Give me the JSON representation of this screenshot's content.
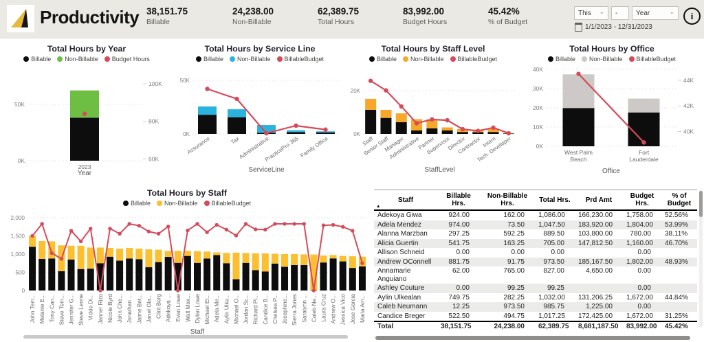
{
  "header": {
    "title": "Productivity",
    "kpis": [
      {
        "value": "38,151.75",
        "label": "Billable"
      },
      {
        "value": "24,238.00",
        "label": "Non-Billable"
      },
      {
        "value": "62,389.75",
        "label": "Total Hours"
      },
      {
        "value": "83,992.00",
        "label": "Budget Hours"
      },
      {
        "value": "45.42%",
        "label": "% of Budget"
      }
    ],
    "slicers": {
      "period": "This",
      "separator": "-",
      "granularity": "Year",
      "date_range": "1/1/2023 - 12/31/2023"
    },
    "info": "i"
  },
  "chart_data": [
    {
      "type": "bar",
      "title": "Total Hours by Year",
      "xlabel": "Year",
      "categories": [
        "2023"
      ],
      "series": [
        {
          "name": "Billable",
          "color": "#0d0d0d",
          "values": [
            38152
          ]
        },
        {
          "name": "Non-Billable",
          "color": "#6fbe44",
          "values": [
            24238
          ]
        }
      ],
      "line": {
        "name": "Budget Hours",
        "color": "#d64a5a",
        "axis": "right",
        "values": [
          83992
        ]
      },
      "y_left": {
        "max": 75000,
        "ticks": [
          {
            "v": 0,
            "label": "0K"
          },
          {
            "v": 50000,
            "label": "50K"
          }
        ]
      },
      "y_right": {
        "min": 59000,
        "max": 104000,
        "ticks": [
          {
            "v": 60000,
            "label": "60K"
          },
          {
            "v": 80000,
            "label": "80K"
          },
          {
            "v": 100000,
            "label": "100K"
          }
        ]
      },
      "legend": [
        {
          "label": "Billable",
          "color": "#0d0d0d"
        },
        {
          "label": "Non-Billable",
          "color": "#6fbe44"
        },
        {
          "label": "Budget Hours",
          "color": "#d64a5a"
        }
      ]
    },
    {
      "type": "bar",
      "title": "Total Hours by Service Line",
      "xlabel": "ServiceLine",
      "categories": [
        "Assurance",
        "Tax",
        "Administrative",
        "PracticePro 365",
        "Family Office"
      ],
      "series": [
        {
          "name": "Billable",
          "color": "#0d0d0d",
          "values": [
            17900,
            15600,
            1000,
            1700,
            1300
          ]
        },
        {
          "name": "Non-Billable",
          "color": "#2bb3e0",
          "values": [
            7700,
            7400,
            7300,
            1700,
            1100
          ]
        }
      ],
      "line": {
        "name": "BillableBudget",
        "color": "#d64a5a",
        "axis": "left",
        "values": [
          42000,
          32700,
          600,
          7700,
          4000
        ]
      },
      "y_left": {
        "max": 50000,
        "ticks": [
          {
            "v": 0,
            "label": "0K"
          },
          {
            "v": 50000,
            "label": "50K"
          }
        ]
      },
      "legend": [
        {
          "label": "Billable",
          "color": "#0d0d0d"
        },
        {
          "label": "Non-Billable",
          "color": "#2bb3e0"
        },
        {
          "label": "BillableBudget",
          "color": "#d64a5a"
        }
      ]
    },
    {
      "type": "bar",
      "title": "Total Hours by Staff Level",
      "xlabel": "StaffLevel",
      "categories": [
        "Staff",
        "Senior Staff",
        "Manager",
        "Administrative",
        "Partner",
        "Supervisor",
        "Director",
        "Contractor",
        "Intern",
        "Tech. Developer"
      ],
      "series": [
        {
          "name": "Billable",
          "color": "#0d0d0d",
          "values": [
            11100,
            7400,
            5400,
            1600,
            2600,
            1600,
            900,
            800,
            900,
            200
          ]
        },
        {
          "name": "Non-Billable",
          "color": "#f7a72a",
          "values": [
            5100,
            3700,
            4100,
            5200,
            4200,
            1400,
            1400,
            1200,
            1400,
            200
          ]
        }
      ],
      "line": {
        "name": "BillableBudget",
        "color": "#d64a5a",
        "axis": "left",
        "values": [
          24500,
          20100,
          12700,
          4900,
          6700,
          6300,
          2200,
          1400,
          2900,
          300
        ]
      },
      "y_left": {
        "max": 26000,
        "ticks": [
          {
            "v": 0,
            "label": "0K"
          },
          {
            "v": 20000,
            "label": "20K"
          }
        ]
      },
      "legend": [
        {
          "label": "Billable",
          "color": "#0d0d0d"
        },
        {
          "label": "Non-Billable",
          "color": "#f7a72a"
        },
        {
          "label": "BillableBudget",
          "color": "#d64a5a"
        }
      ]
    },
    {
      "type": "bar",
      "title": "Total Hours by Office",
      "xlabel": "Office",
      "categories": [
        "West Palm Beach",
        "Fort Lauderdale"
      ],
      "series": [
        {
          "name": "Billable",
          "color": "#0d0d0d",
          "values": [
            19900,
            17600
          ]
        },
        {
          "name": "Non-Billable",
          "color": "#ccc9c6",
          "values": [
            17500,
            7200
          ]
        }
      ],
      "line": {
        "name": "BillableBudget",
        "color": "#d64a5a",
        "axis": "right",
        "values": [
          44500,
          39150
        ]
      },
      "y_left": {
        "max": 40000,
        "ticks": [
          {
            "v": 0,
            "label": "0K"
          },
          {
            "v": 10000,
            "label": "10K"
          },
          {
            "v": 20000,
            "label": "20K"
          },
          {
            "v": 30000,
            "label": "30K"
          },
          {
            "v": 40000,
            "label": "40K"
          }
        ]
      },
      "y_right": {
        "min": 38850,
        "max": 44850,
        "ticks": [
          {
            "v": 40000,
            "label": "40K"
          },
          {
            "v": 42000,
            "label": "42K"
          },
          {
            "v": 44000,
            "label": "44K"
          }
        ]
      },
      "legend": [
        {
          "label": "Billable",
          "color": "#0d0d0d"
        },
        {
          "label": "Non-Billable",
          "color": "#ccc9c6"
        },
        {
          "label": "BillableBudget",
          "color": "#d64a5a"
        }
      ]
    },
    {
      "type": "bar",
      "title": "Total Hours by Staff",
      "xlabel": "Staff",
      "categories": [
        "John Tem...",
        "Melanie E...",
        "Tony Can...",
        "Steve Tem...",
        "Jennifer G...",
        "Steve Leone",
        "Vickie Di...",
        "Janner Rizo",
        "Nicole Byrd",
        "John Che...",
        "Jonathan ...",
        "Jaime Bet...",
        "Janet Gla...",
        "Clint Berg",
        "Adekoya ...",
        "Evan Lowe",
        "Walt Max...",
        "Dylan Lowe",
        "Michael El...",
        "Adela Me...",
        "Aylin Ulke...",
        "Michael O...",
        "Jordan Sc...",
        "Richard Pi...",
        "Candice B...",
        "Chelsea P...",
        "Josephine...",
        "Sierra Jones",
        "Saralynn ...",
        "Caleb Ne...",
        "Laura Cruz",
        "Andrew O...",
        "Jessica Vico",
        "Jose Garcia",
        "Maria Arn..."
      ],
      "series": [
        {
          "name": "Billable",
          "color": "#0d0d0d",
          "values": [
            1200,
            870,
            880,
            530,
            850,
            590,
            600,
            750,
            930,
            820,
            880,
            860,
            640,
            780,
            924,
            760,
            950,
            760,
            880,
            974,
            750,
            310,
            760,
            560,
            523,
            740,
            650,
            700,
            700,
            12,
            770,
            882,
            800,
            620,
            660
          ]
        },
        {
          "name": "Non-Billable",
          "color": "#fcbf2f",
          "values": [
            300,
            490,
            470,
            710,
            380,
            640,
            580,
            430,
            240,
            330,
            290,
            290,
            490,
            340,
            162,
            330,
            140,
            320,
            190,
            74,
            282,
            730,
            270,
            460,
            495,
            270,
            350,
            300,
            290,
            974,
            190,
            92,
            150,
            320,
            270
          ]
        }
      ],
      "line": {
        "name": "BillableBudget",
        "color": "#d64a5a",
        "axis": "left",
        "values": [
          1500,
          1830,
          1030,
          870,
          1640,
          1350,
          1700,
          0,
          1700,
          1560,
          1830,
          1780,
          1620,
          1560,
          1758,
          0,
          1650,
          1830,
          1600,
          1804,
          1672,
          1510,
          1830,
          1680,
          1672,
          1830,
          1830,
          1830,
          1830,
          0,
          1790,
          1802,
          1750,
          1640,
          750
        ]
      },
      "y_left": {
        "max": 2000,
        "ticks": [
          {
            "v": 0,
            "label": "0"
          },
          {
            "v": 500,
            "label": "500"
          },
          {
            "v": 1000,
            "label": "1,000"
          },
          {
            "v": 1500,
            "label": "1,500"
          },
          {
            "v": 2000,
            "label": "2,000"
          }
        ]
      },
      "legend": [
        {
          "label": "Billable",
          "color": "#0d0d0d"
        },
        {
          "label": "Non-Billable",
          "color": "#fcbf2f"
        },
        {
          "label": "BillableBudget",
          "color": "#d64a5a"
        }
      ]
    }
  ],
  "table": {
    "columns": [
      "Staff",
      "Billable Hrs.",
      "Non-Billable Hrs.",
      "Total Hrs.",
      "Prd Amt",
      "Budget Hrs.",
      "% of Budget"
    ],
    "sort_icon": "▲",
    "rows": [
      [
        "Adekoya Giwa",
        "924.00",
        "162.00",
        "1,086.00",
        "166,230.00",
        "1,758.00",
        "52.56%"
      ],
      [
        "Adela Mendez",
        "974.00",
        "73.50",
        "1,047.50",
        "183,920.00",
        "1,804.00",
        "53.99%"
      ],
      [
        "Alanna Marzban",
        "297.25",
        "592.25",
        "889.50",
        "103,800.00",
        "780.00",
        "38.11%"
      ],
      [
        "Alicia Guertin",
        "541.75",
        "163.25",
        "705.00",
        "147,812.50",
        "1,160.00",
        "46.70%"
      ],
      [
        "Allison Schneid",
        "0.00",
        "0.00",
        "0.00",
        "",
        "0.00",
        ""
      ],
      [
        "Andrew OConnell",
        "881.75",
        "91.75",
        "973.50",
        "185,167.50",
        "1,802.00",
        "48.93%"
      ],
      [
        "Annamarie Anguiano",
        "62.00",
        "765.00",
        "827.00",
        "4,650.00",
        "0.00",
        ""
      ],
      [
        "Ashley Couture",
        "0.00",
        "99.25",
        "99.25",
        "",
        "0.00",
        ""
      ],
      [
        "Aylin Ulkealan",
        "749.75",
        "282.25",
        "1,032.00",
        "131,206.25",
        "1,672.00",
        "44.84%"
      ],
      [
        "Caleb Neumann",
        "12.25",
        "973.50",
        "985.75",
        "1,225.00",
        "0.00",
        ""
      ],
      [
        "Candice Breger",
        "522.50",
        "494.75",
        "1,017.25",
        "172,425.00",
        "1,672.00",
        "31.25%"
      ]
    ],
    "total": [
      "Total",
      "38,151.75",
      "24,238.00",
      "62,389.75",
      "8,681,187.50",
      "83,992.00",
      "45.42%"
    ]
  }
}
